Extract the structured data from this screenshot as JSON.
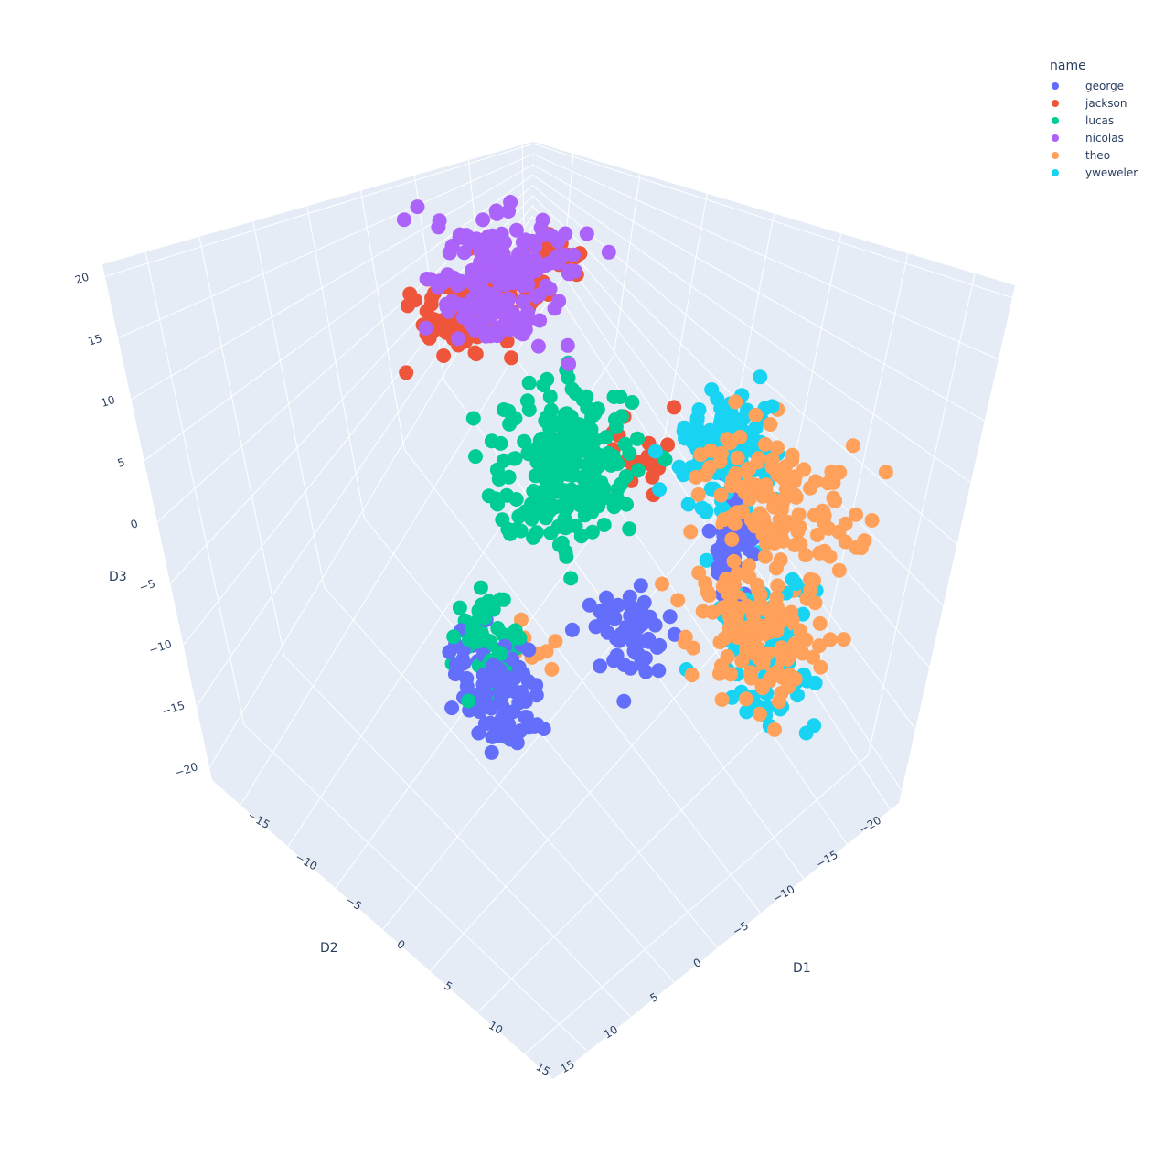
{
  "chart_data": {
    "type": "scatter",
    "dims": 3,
    "legend": {
      "title": "name",
      "placement": "top-right",
      "items": [
        {
          "name": "george",
          "color": "#636efa"
        },
        {
          "name": "jackson",
          "color": "#EF553B"
        },
        {
          "name": "lucas",
          "color": "#00cc96"
        },
        {
          "name": "nicolas",
          "color": "#ab63fa"
        },
        {
          "name": "theo",
          "color": "#FFA15A"
        },
        {
          "name": "yweweler",
          "color": "#19d3f3"
        }
      ]
    },
    "axes": {
      "x": {
        "title": "D1",
        "range": [
          -18,
          18
        ],
        "ticks": [
          -15,
          -10,
          -5,
          0,
          5,
          10,
          15
        ]
      },
      "y": {
        "title": "D2",
        "range": [
          -21,
          19
        ],
        "ticks": [
          -20,
          -15,
          -10,
          -5,
          0,
          5,
          10,
          15
        ]
      },
      "z": {
        "title": "D3",
        "range": [
          -21,
          21
        ],
        "ticks": [
          -20,
          -15,
          -10,
          -5,
          0,
          5,
          10,
          15,
          20
        ]
      }
    },
    "grid": true,
    "series": [
      {
        "name": "george",
        "color": "#636efa",
        "clusters": [
          {
            "x": 0.5,
            "y": 5.5,
            "z": -12,
            "sx": 2.0,
            "sy": 1.4,
            "sz": 1.5,
            "n": 90
          },
          {
            "x": 5.5,
            "y": -3.5,
            "z": -9,
            "sx": 1.5,
            "sy": 1.2,
            "sz": 1.6,
            "n": 60
          },
          {
            "x": 9,
            "y": -10,
            "z": -2,
            "sx": 0.9,
            "sy": 1.0,
            "sz": 2.2,
            "n": 40
          }
        ]
      },
      {
        "name": "jackson",
        "color": "#EF553B",
        "clusters": [
          {
            "x": -10,
            "y": -3,
            "z": 10,
            "sx": 1.4,
            "sy": 1.6,
            "sz": 1.5,
            "n": 60
          },
          {
            "x": -12,
            "y": -10,
            "z": 7,
            "sx": 1.5,
            "sy": 1.6,
            "sz": 1.6,
            "n": 60
          },
          {
            "x": -13,
            "y": -16,
            "z": 3,
            "sx": 1.0,
            "sy": 1.1,
            "sz": 1.3,
            "n": 25
          },
          {
            "x": -4,
            "y": -16,
            "z": -14,
            "sx": 1.0,
            "sy": 1.2,
            "sz": 0.8,
            "n": 18
          }
        ]
      },
      {
        "name": "lucas",
        "color": "#00cc96",
        "clusters": [
          {
            "x": -4,
            "y": -7,
            "z": -5,
            "sx": 2.2,
            "sy": 2.6,
            "sz": 3.0,
            "n": 230
          },
          {
            "x": -1.5,
            "y": 4.5,
            "z": -10,
            "sx": 1.2,
            "sy": 1.3,
            "sz": 2.2,
            "n": 50
          }
        ]
      },
      {
        "name": "nicolas",
        "color": "#ab63fa",
        "clusters": [
          {
            "x": -9,
            "y": -8,
            "z": 16,
            "sx": 2.2,
            "sy": 2.0,
            "sz": 2.0,
            "n": 120
          },
          {
            "x": -5,
            "y": -1,
            "z": 16,
            "sx": 2.0,
            "sy": 1.6,
            "sz": 1.2,
            "n": 70
          }
        ]
      },
      {
        "name": "theo",
        "color": "#FFA15A",
        "clusters": [
          {
            "x": 13,
            "y": -8,
            "z": -5,
            "sx": 2.2,
            "sy": 2.0,
            "sz": 2.5,
            "n": 140
          },
          {
            "x": 13,
            "y": -6,
            "z": 8,
            "sx": 1.8,
            "sy": 1.8,
            "sz": 2.0,
            "n": 60
          },
          {
            "x": 12,
            "y": -12,
            "z": 1,
            "sx": 2.2,
            "sy": 2.0,
            "sz": 2.5,
            "n": 70
          },
          {
            "x": -1,
            "y": 0,
            "z": -14,
            "sx": 1.2,
            "sy": 1.2,
            "sz": 0.8,
            "n": 10
          }
        ]
      },
      {
        "name": "yweweler",
        "color": "#19d3f3",
        "clusters": [
          {
            "x": 6,
            "y": -12,
            "z": 3,
            "sx": 1.6,
            "sy": 1.6,
            "sz": 2.4,
            "n": 150
          },
          {
            "x": 12,
            "y": -10,
            "z": -8,
            "sx": 2.2,
            "sy": 2.0,
            "sz": 2.4,
            "n": 70
          }
        ]
      }
    ]
  }
}
